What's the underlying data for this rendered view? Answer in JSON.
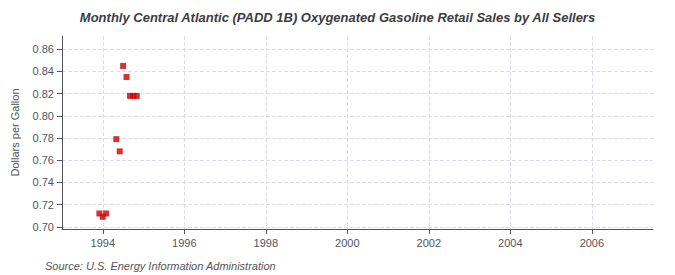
{
  "chart_data": {
    "type": "scatter",
    "title": "Monthly Central Atlantic (PADD 1B) Oxygenated Gasoline Retail Sales by All Sellers",
    "ylabel": "Dollars per Gallon",
    "annotations": [
      "Source: U.S. Energy Information Administration"
    ],
    "x": [
      1993.917,
      1994.0,
      1994.083,
      1994.333,
      1994.417,
      1994.5,
      1994.583,
      1994.667,
      1994.75,
      1994.833
    ],
    "values": [
      0.712,
      0.709,
      0.712,
      0.779,
      0.768,
      0.845,
      0.835,
      0.818,
      0.818,
      0.818
    ],
    "color": "#cc0000",
    "marker": "square",
    "xlim": [
      1993.0,
      2007.5
    ],
    "ylim": [
      0.698,
      0.872
    ],
    "xticks": [
      1994,
      1996,
      1998,
      2000,
      2002,
      2004,
      2006
    ],
    "yticks": [
      {
        "value": 0.7,
        "label": "0.70"
      },
      0.72,
      0.74,
      0.76,
      0.78,
      {
        "value": 0.8,
        "label": "0.80"
      },
      0.82,
      0.84,
      0.86
    ],
    "grid": true
  }
}
